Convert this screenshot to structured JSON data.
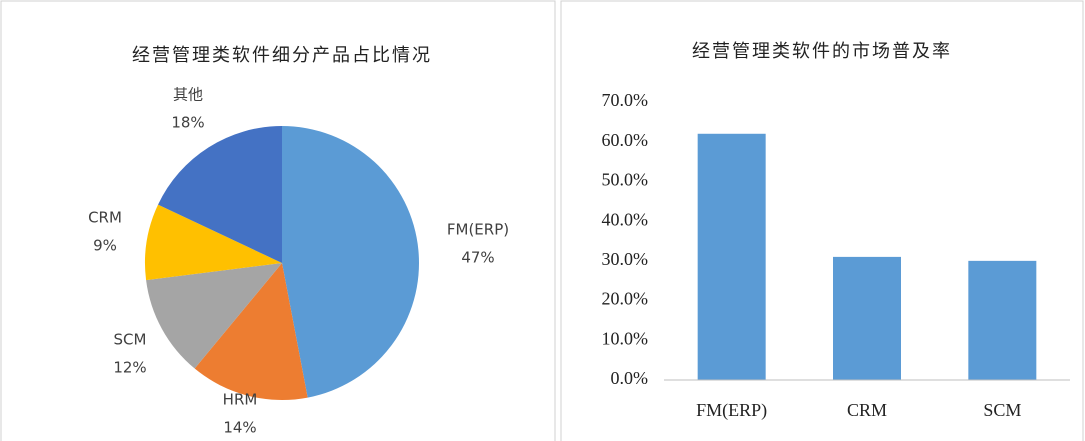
{
  "chart_data": [
    {
      "type": "pie",
      "title": "经营管理类软件细分产品占比情况",
      "categories": [
        "FM(ERP)",
        "HRM",
        "SCM",
        "CRM",
        "其他"
      ],
      "values": [
        47,
        14,
        12,
        9,
        18
      ],
      "value_labels": [
        "47%",
        "14%",
        "12%",
        "9%",
        "18%"
      ],
      "colors": [
        "#5b9bd5",
        "#ed7d31",
        "#a5a5a5",
        "#ffc000",
        "#4472c4"
      ]
    },
    {
      "type": "bar",
      "title": "经营管理类软件的市场普及率",
      "categories": [
        "FM(ERP)",
        "CRM",
        "SCM"
      ],
      "values": [
        62,
        31,
        30
      ],
      "color": "#5b9bd5",
      "ylim": [
        0,
        70
      ],
      "yticks": [
        {
          "value": 0,
          "label": "0.0%"
        },
        {
          "value": 10,
          "label": "10.0%"
        },
        {
          "value": 20,
          "label": "20.0%"
        },
        {
          "value": 30,
          "label": "30.0%"
        },
        {
          "value": 40,
          "label": "40.0%"
        },
        {
          "value": 50,
          "label": "50.0%"
        },
        {
          "value": 60,
          "label": "60.0%"
        },
        {
          "value": 70,
          "label": "70.0%"
        }
      ],
      "grid": false
    }
  ]
}
